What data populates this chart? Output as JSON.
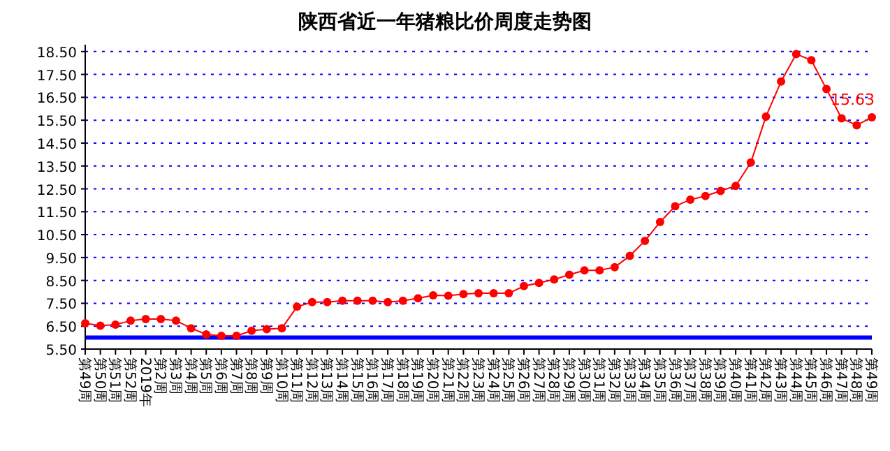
{
  "chart_data": {
    "type": "line",
    "title": "陕西省近一年猪粮比价周度走势图",
    "categories": [
      "第49周",
      "第50周",
      "第51周",
      "第52周",
      "2019年",
      "第2周",
      "第3周",
      "第4周",
      "第5周",
      "第6周",
      "第7周",
      "第8周",
      "第9周",
      "第10周",
      "第11周",
      "第12周",
      "第13周",
      "第14周",
      "第15周",
      "第16周",
      "第17周",
      "第18周",
      "第19周",
      "第20周",
      "第21周",
      "第22周",
      "第23周",
      "第24周",
      "第25周",
      "第26周",
      "第27周",
      "第28周",
      "第29周",
      "第30周",
      "第31周",
      "第32周",
      "第33周",
      "第34周",
      "第35周",
      "第36周",
      "第37周",
      "第38周",
      "第39周",
      "第40周",
      "第41周",
      "第42周",
      "第43周",
      "第44周",
      "第45周",
      "第46周",
      "第47周",
      "第48周",
      "第49周"
    ],
    "series": [
      {
        "color": "#ff0000",
        "values": [
          6.63,
          6.52,
          6.57,
          6.74,
          6.81,
          6.81,
          6.74,
          6.41,
          6.14,
          6.08,
          6.08,
          6.3,
          6.37,
          6.41,
          7.35,
          7.55,
          7.55,
          7.61,
          7.61,
          7.61,
          7.55,
          7.61,
          7.72,
          7.85,
          7.83,
          7.9,
          7.94,
          7.94,
          7.94,
          8.25,
          8.39,
          8.54,
          8.75,
          8.94,
          8.94,
          9.08,
          9.57,
          10.23,
          11.05,
          11.74,
          12.03,
          12.19,
          12.41,
          12.63,
          13.65,
          15.66,
          17.19,
          18.39,
          18.12,
          16.86,
          15.58,
          15.28,
          15.63
        ],
        "value_labels": [
          null,
          null,
          null,
          null,
          null,
          null,
          null,
          null,
          null,
          null,
          null,
          null,
          null,
          null,
          null,
          null,
          null,
          null,
          null,
          null,
          null,
          null,
          null,
          null,
          null,
          null,
          null,
          null,
          null,
          null,
          null,
          null,
          null,
          null,
          null,
          null,
          null,
          null,
          null,
          null,
          null,
          null,
          null,
          null,
          null,
          null,
          null,
          null,
          null,
          null,
          null,
          null,
          "15.63"
        ]
      }
    ],
    "ylim": [
      5.5,
      18.8
    ],
    "yticks": [
      {
        "value": 5.5,
        "label": "5.50"
      },
      {
        "value": 6.5,
        "label": "6.50"
      },
      {
        "value": 7.5,
        "label": "7.50"
      },
      {
        "value": 8.5,
        "label": "8.50"
      },
      {
        "value": 9.5,
        "label": "9.50"
      },
      {
        "value": 10.5,
        "label": "10.50"
      },
      {
        "value": 11.5,
        "label": "11.50"
      },
      {
        "value": 12.5,
        "label": "12.50"
      },
      {
        "value": 13.5,
        "label": "13.50"
      },
      {
        "value": 14.5,
        "label": "14.50"
      },
      {
        "value": 15.5,
        "label": "15.50"
      },
      {
        "value": 16.5,
        "label": "16.50"
      },
      {
        "value": 17.5,
        "label": "17.50"
      },
      {
        "value": 18.5,
        "label": "18.50"
      }
    ],
    "grid": "y",
    "marker": "circle",
    "line_style": "solid",
    "ref_lines": [
      {
        "axis": "y",
        "value": 6.0,
        "color": "#0000ff",
        "line_style": "solid"
      }
    ]
  }
}
